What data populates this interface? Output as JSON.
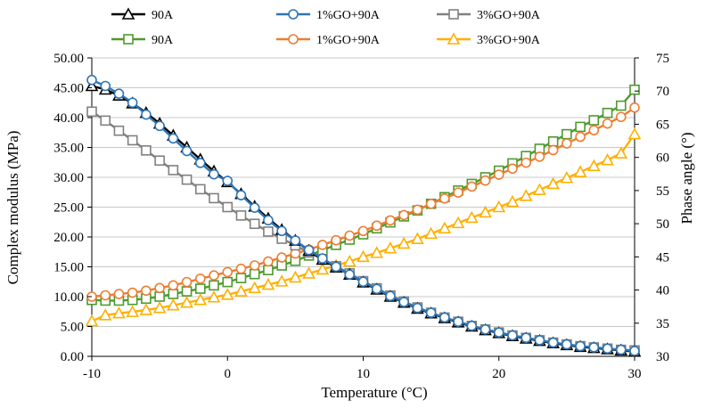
{
  "chart_data": {
    "type": "line",
    "title": "",
    "xlabel": "Temperature (°C)",
    "ylabel": "Complex modulus (MPa)",
    "y2label": "Phase angle (°)",
    "xlim": [
      -10,
      30
    ],
    "ylim": [
      0,
      50
    ],
    "y2lim": [
      30,
      75
    ],
    "x_ticks": [
      "-10",
      "0",
      "10",
      "20",
      "30"
    ],
    "y_ticks": [
      "0.00",
      "5.00",
      "10.00",
      "15.00",
      "20.00",
      "25.00",
      "30.00",
      "35.00",
      "40.00",
      "45.00",
      "50.00"
    ],
    "y2_ticks": [
      "30",
      "35",
      "40",
      "45",
      "50",
      "55",
      "60",
      "65",
      "70",
      "75"
    ],
    "grid": "horizontal",
    "legend_position": "top",
    "x": [
      -10,
      -9,
      -8,
      -7,
      -6,
      -5,
      -4,
      -3,
      -2,
      -1,
      0,
      1,
      2,
      3,
      4,
      5,
      6,
      7,
      8,
      9,
      10,
      11,
      12,
      13,
      14,
      15,
      16,
      17,
      18,
      19,
      20,
      21,
      22,
      23,
      24,
      25,
      26,
      27,
      28,
      29,
      30
    ],
    "series": [
      {
        "name": "90A",
        "axis": "left",
        "color": "#000000",
        "marker": "triangle",
        "values": [
          45.3,
          44.7,
          43.7,
          42.4,
          40.8,
          39.0,
          37.0,
          35.0,
          33.0,
          31.0,
          29.2,
          27.2,
          25.1,
          23.1,
          21.2,
          19.4,
          17.7,
          16.2,
          14.9,
          13.7,
          12.4,
          11.2,
          10.0,
          9.0,
          8.0,
          7.2,
          6.4,
          5.7,
          5.0,
          4.4,
          3.9,
          3.4,
          3.0,
          2.6,
          2.2,
          1.9,
          1.6,
          1.4,
          1.2,
          1.0,
          0.8
        ]
      },
      {
        "name": "1%GO+90A",
        "axis": "left",
        "color": "#2e75b6",
        "marker": "circle",
        "values": [
          46.3,
          45.3,
          44.0,
          42.5,
          40.5,
          38.6,
          36.5,
          34.4,
          32.4,
          30.5,
          29.4,
          27.0,
          24.9,
          22.8,
          21.0,
          19.4,
          17.8,
          16.4,
          15.0,
          13.7,
          12.5,
          11.3,
          10.1,
          9.1,
          8.1,
          7.3,
          6.5,
          5.8,
          5.1,
          4.5,
          4.0,
          3.5,
          3.1,
          2.7,
          2.3,
          2.0,
          1.7,
          1.5,
          1.3,
          1.1,
          0.9
        ]
      },
      {
        "name": "3%GO+90A",
        "axis": "left",
        "color": "#808080",
        "marker": "square",
        "values": [
          41.0,
          39.5,
          37.8,
          36.2,
          34.5,
          32.8,
          31.2,
          29.6,
          28.0,
          26.5,
          25.0,
          23.6,
          22.2,
          20.9,
          19.7,
          18.6,
          17.4,
          16.3,
          15.1,
          13.9,
          12.6,
          11.4,
          10.2,
          9.2,
          8.2,
          7.3,
          6.5,
          5.8,
          5.1,
          4.5,
          4.0,
          3.5,
          3.1,
          2.7,
          2.3,
          2.0,
          1.7,
          1.5,
          1.3,
          1.1,
          1.0
        ]
      },
      {
        "name": "90A",
        "axis": "right",
        "color": "#4e9a2e",
        "marker": "square",
        "values": [
          38.5,
          38.4,
          38.4,
          38.5,
          38.7,
          39.0,
          39.4,
          39.8,
          40.2,
          40.7,
          41.2,
          41.8,
          42.4,
          43.0,
          43.7,
          44.4,
          45.2,
          46.0,
          46.8,
          47.6,
          48.4,
          49.3,
          50.2,
          51.1,
          52.0,
          53.0,
          54.0,
          55.0,
          56.0,
          57.0,
          58.0,
          59.1,
          60.2,
          61.3,
          62.4,
          63.5,
          64.6,
          65.6,
          66.7,
          67.8,
          70.2
        ]
      },
      {
        "name": "1%GO+90A",
        "axis": "right",
        "color": "#ed7d31",
        "marker": "circle",
        "values": [
          39.0,
          39.2,
          39.4,
          39.6,
          39.9,
          40.3,
          40.7,
          41.2,
          41.7,
          42.2,
          42.7,
          43.2,
          43.7,
          44.3,
          44.9,
          45.5,
          46.1,
          46.8,
          47.5,
          48.2,
          48.9,
          49.7,
          50.5,
          51.3,
          52.1,
          53.0,
          53.8,
          54.7,
          55.6,
          56.5,
          57.4,
          58.3,
          59.2,
          60.1,
          61.1,
          62.1,
          63.1,
          64.1,
          65.1,
          66.1,
          67.5
        ]
      },
      {
        "name": "3%GO+90A",
        "axis": "right",
        "color": "#ffb000",
        "marker": "triangle",
        "values": [
          35.3,
          36.2,
          36.5,
          36.7,
          37.0,
          37.3,
          37.7,
          38.1,
          38.5,
          38.9,
          39.3,
          39.8,
          40.3,
          40.8,
          41.3,
          41.9,
          42.5,
          43.1,
          43.7,
          44.3,
          45.0,
          45.6,
          46.3,
          47.0,
          47.7,
          48.5,
          49.3,
          50.1,
          50.9,
          51.7,
          52.5,
          53.3,
          54.2,
          55.1,
          56.0,
          56.9,
          57.8,
          58.7,
          59.6,
          60.6,
          63.5
        ]
      }
    ]
  }
}
